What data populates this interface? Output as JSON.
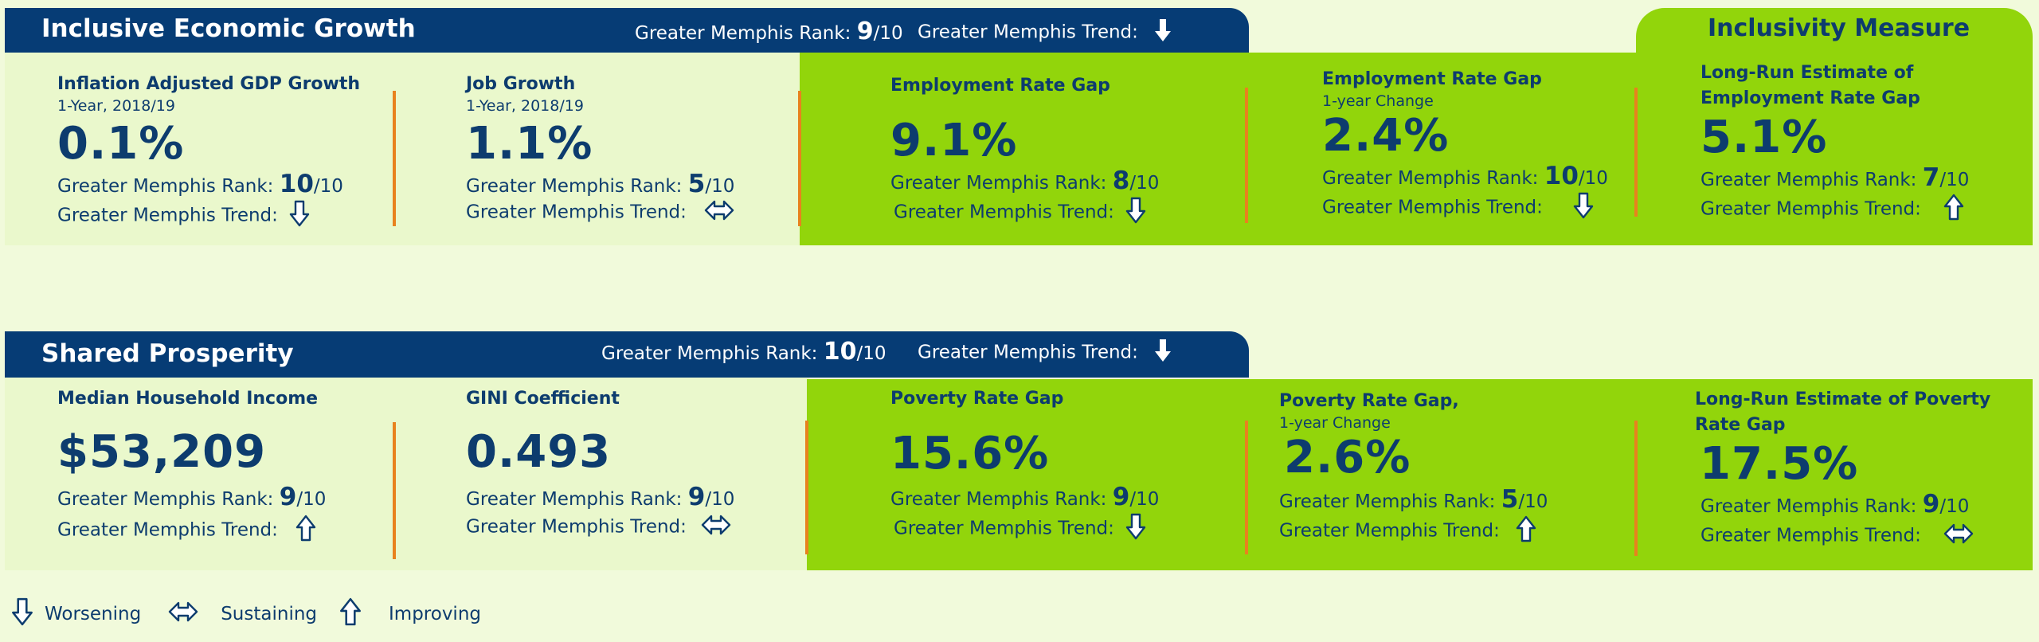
{
  "section1": {
    "title": "Inclusive Economic Growth",
    "rank_label": "Greater Memphis Rank:",
    "rank": "9",
    "rank_of": "/10",
    "trend_label": "Greater Memphis Trend:",
    "trend": "worsening"
  },
  "inclusivity_title": "Inclusivity Measure",
  "row1": [
    {
      "title": "Inflation Adjusted GDP Growth",
      "subtitle": "1-Year, 2018/19",
      "value": "0.1%",
      "rank_label": "Greater Memphis Rank:",
      "rank": "10",
      "rank_of": "/10",
      "trend_label": "Greater Memphis Trend:",
      "trend": "worsening"
    },
    {
      "title": "Job Growth",
      "subtitle": "1-Year, 2018/19",
      "value": "1.1%",
      "rank_label": "Greater Memphis Rank:",
      "rank": "5",
      "rank_of": "/10",
      "trend_label": "Greater Memphis Trend:",
      "trend": "sustaining"
    },
    {
      "title": "Employment Rate Gap",
      "subtitle": "",
      "value": "9.1%",
      "rank_label": "Greater Memphis Rank:",
      "rank": "8",
      "rank_of": "/10",
      "trend_label": "Greater Memphis Trend:",
      "trend": "worsening"
    },
    {
      "title": "Employment Rate Gap",
      "subtitle": "1-year Change",
      "value": "2.4%",
      "rank_label": "Greater Memphis Rank:",
      "rank": "10",
      "rank_of": "/10",
      "trend_label": "Greater Memphis Trend:",
      "trend": "worsening"
    },
    {
      "title": "Long-Run Estimate of",
      "title2": "Employment Rate Gap",
      "subtitle": "",
      "value": "5.1%",
      "rank_label": "Greater Memphis Rank:",
      "rank": "7",
      "rank_of": "/10",
      "trend_label": "Greater Memphis Trend:",
      "trend": "improving"
    }
  ],
  "section2": {
    "title": "Shared Prosperity",
    "rank_label": "Greater Memphis Rank:",
    "rank": "10",
    "rank_of": "/10",
    "trend_label": "Greater Memphis Trend:",
    "trend": "worsening"
  },
  "row2": [
    {
      "title": "Median Household Income",
      "subtitle": "",
      "value": "$53,209",
      "rank_label": "Greater Memphis Rank:",
      "rank": "9",
      "rank_of": "/10",
      "trend_label": "Greater Memphis Trend:",
      "trend": "improving"
    },
    {
      "title": "GINI Coefficient",
      "subtitle": "",
      "value": "0.493",
      "rank_label": "Greater Memphis Rank:",
      "rank": "9",
      "rank_of": "/10",
      "trend_label": "Greater Memphis Trend:",
      "trend": "sustaining"
    },
    {
      "title": "Poverty Rate Gap",
      "subtitle": "",
      "value": "15.6%",
      "rank_label": "Greater Memphis Rank:",
      "rank": "9",
      "rank_of": "/10",
      "trend_label": "Greater Memphis Trend:",
      "trend": "worsening"
    },
    {
      "title": "Poverty Rate Gap,",
      "subtitle": "1-year Change",
      "value": "2.6%",
      "rank_label": "Greater Memphis Rank:",
      "rank": "5",
      "rank_of": "/10",
      "trend_label": "Greater Memphis Trend:",
      "trend": "improving"
    },
    {
      "title": "Long-Run Estimate of Poverty",
      "title2": "Rate Gap",
      "subtitle": "",
      "value": "17.5%",
      "rank_label": "Greater Memphis Rank:",
      "rank": "9",
      "rank_of": "/10",
      "trend_label": "Greater Memphis Trend:",
      "trend": "sustaining"
    }
  ],
  "legend": {
    "worsening": "Worsening",
    "sustaining": "Sustaining",
    "improving": "Improving"
  },
  "colors": {
    "navy": "#063c75",
    "green": "#92d50b",
    "light_green": "#eaf8cc",
    "divider_orange": "#e8821e"
  },
  "icons": {
    "worsening": "down-arrow-icon",
    "sustaining": "left-right-arrow-icon",
    "improving": "up-arrow-icon",
    "header_trend": "solid-down-arrow-icon"
  }
}
